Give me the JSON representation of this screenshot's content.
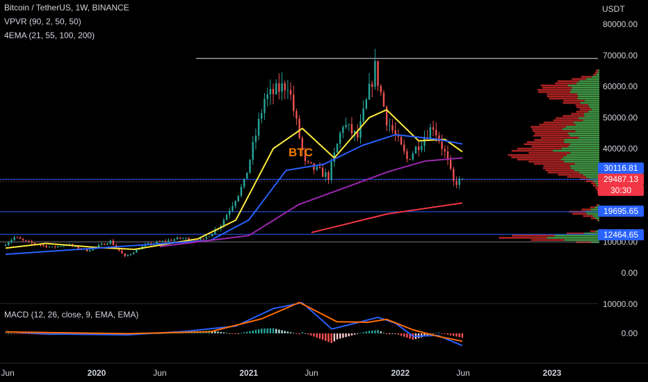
{
  "legend": {
    "title": "Bitcoin / TetherUS, 1W, BINANCE",
    "vpvr": "VPVR (90, 2, 50, 50)",
    "ema": "4EMA (21, 55, 100, 200)",
    "macd": "MACD (12, 26, close, 9, EMA, EMA)"
  },
  "currency": "USDT",
  "annotation_text": "BTC",
  "price_tags": {
    "level1": "30116.81",
    "current_price": "29487.13",
    "countdown": "30:30",
    "level2": "19695.65",
    "level3": "12464.65"
  },
  "colors": {
    "up": "#26a69a",
    "down": "#ef5350",
    "ema21": "#ffeb3b",
    "ema55": "#2962ff",
    "ema100": "#9c27b0",
    "ema200": "#f23645",
    "hline": "#2962ff",
    "vol_up": "#4caf50",
    "vol_down": "#c62828",
    "macd_line": "#2962ff",
    "signal_line": "#ff6d00"
  },
  "chart_data": [
    {
      "type": "candlestick",
      "title": "Bitcoin / TetherUS, 1W, BINANCE",
      "ylabel": "USDT",
      "ylim": [
        0,
        80000
      ],
      "y_ticks": [
        "80000.00",
        "70000.00",
        "60000.00",
        "50000.00",
        "40000.00",
        "30000.00",
        "20000.00",
        "10000.00",
        "0.00"
      ],
      "x_ticks": [
        "Jun",
        "2020",
        "Jun",
        "2021",
        "Jun",
        "2022",
        "Jun",
        "2023"
      ],
      "x_tick_dates": [
        "2019-06-01",
        "2020-01-01",
        "2020-06-01",
        "2021-01-01",
        "2021-06-01",
        "2022-01-01",
        "2022-06-01",
        "2023-01-01"
      ],
      "price_path": [
        [
          "2019-05-27",
          8700
        ],
        [
          "2019-06-24",
          11500
        ],
        [
          "2019-07-22",
          10000
        ],
        [
          "2019-09-23",
          8200
        ],
        [
          "2019-10-28",
          9200
        ],
        [
          "2019-12-16",
          7200
        ],
        [
          "2020-02-10",
          10200
        ],
        [
          "2020-03-16",
          5200
        ],
        [
          "2020-05-04",
          9000
        ],
        [
          "2020-07-27",
          11200
        ],
        [
          "2020-09-21",
          10600
        ],
        [
          "2020-11-02",
          15500
        ],
        [
          "2020-12-28",
          29000
        ],
        [
          "2021-02-15",
          56000
        ],
        [
          "2021-04-12",
          61000
        ],
        [
          "2021-05-24",
          35000
        ],
        [
          "2021-07-19",
          31000
        ],
        [
          "2021-08-23",
          48000
        ],
        [
          "2021-09-27",
          43500
        ],
        [
          "2021-11-08",
          66000
        ],
        [
          "2021-12-06",
          49500
        ],
        [
          "2022-01-24",
          36500
        ],
        [
          "2022-03-28",
          47500
        ],
        [
          "2022-04-25",
          38500
        ],
        [
          "2022-05-16",
          29000
        ],
        [
          "2022-05-30",
          29487
        ]
      ],
      "ema_series": [
        {
          "name": "EMA 21",
          "points": [
            [
              "2019-05-27",
              8000
            ],
            [
              "2019-09-01",
              9500
            ],
            [
              "2020-01-01",
              8200
            ],
            [
              "2020-04-01",
              7600
            ],
            [
              "2020-09-01",
              11000
            ],
            [
              "2020-12-01",
              17000
            ],
            [
              "2021-03-01",
              40000
            ],
            [
              "2021-05-10",
              46500
            ],
            [
              "2021-07-26",
              37000
            ],
            [
              "2021-10-18",
              50000
            ],
            [
              "2021-11-29",
              52500
            ],
            [
              "2022-02-14",
              42500
            ],
            [
              "2022-04-18",
              43000
            ],
            [
              "2022-05-30",
              39000
            ]
          ]
        },
        {
          "name": "EMA 55",
          "points": [
            [
              "2019-05-27",
              6000
            ],
            [
              "2020-01-01",
              8000
            ],
            [
              "2020-10-01",
              10500
            ],
            [
              "2021-01-01",
              17000
            ],
            [
              "2021-04-01",
              33000
            ],
            [
              "2021-07-01",
              35000
            ],
            [
              "2021-10-01",
              41000
            ],
            [
              "2021-12-20",
              44500
            ],
            [
              "2022-04-01",
              43000
            ],
            [
              "2022-05-30",
              41500
            ]
          ]
        },
        {
          "name": "EMA 100",
          "points": [
            [
              "2020-06-01",
              8500
            ],
            [
              "2021-01-01",
              12000
            ],
            [
              "2021-05-01",
              22000
            ],
            [
              "2021-09-01",
              28000
            ],
            [
              "2021-12-01",
              32500
            ],
            [
              "2022-03-01",
              36000
            ],
            [
              "2022-05-30",
              37000
            ]
          ]
        },
        {
          "name": "EMA 200",
          "points": [
            [
              "2021-06-01",
              13000
            ],
            [
              "2021-12-01",
              19000
            ],
            [
              "2022-05-30",
              22500
            ]
          ]
        }
      ],
      "horizontal_lines": [
        69000,
        30116.81,
        19695.65,
        12464.65,
        10000
      ],
      "current_price": 29487.13
    },
    {
      "type": "histogram",
      "title": "MACD (12, 26, close, 9, EMA, EMA)",
      "y_ticks": [
        "10000.00",
        "0.00"
      ],
      "macd_line": [
        [
          "2019-05-27",
          600
        ],
        [
          "2019-09-01",
          -200
        ],
        [
          "2020-03-16",
          -500
        ],
        [
          "2020-08-01",
          700
        ],
        [
          "2020-12-01",
          2500
        ],
        [
          "2021-03-01",
          8500
        ],
        [
          "2021-05-10",
          10500
        ],
        [
          "2021-07-20",
          1500
        ],
        [
          "2021-09-01",
          3000
        ],
        [
          "2021-11-08",
          5500
        ],
        [
          "2021-12-20",
          3500
        ],
        [
          "2022-02-01",
          -1000
        ],
        [
          "2022-04-01",
          -700
        ],
        [
          "2022-05-30",
          -4200
        ]
      ],
      "signal_line": [
        [
          "2019-05-27",
          500
        ],
        [
          "2020-03-16",
          -100
        ],
        [
          "2020-10-01",
          600
        ],
        [
          "2021-02-01",
          5000
        ],
        [
          "2021-05-03",
          10600
        ],
        [
          "2021-08-01",
          4000
        ],
        [
          "2021-10-15",
          3800
        ],
        [
          "2021-11-29",
          4800
        ],
        [
          "2022-02-01",
          1200
        ],
        [
          "2022-04-01",
          -1000
        ],
        [
          "2022-05-30",
          -2700
        ]
      ]
    }
  ]
}
